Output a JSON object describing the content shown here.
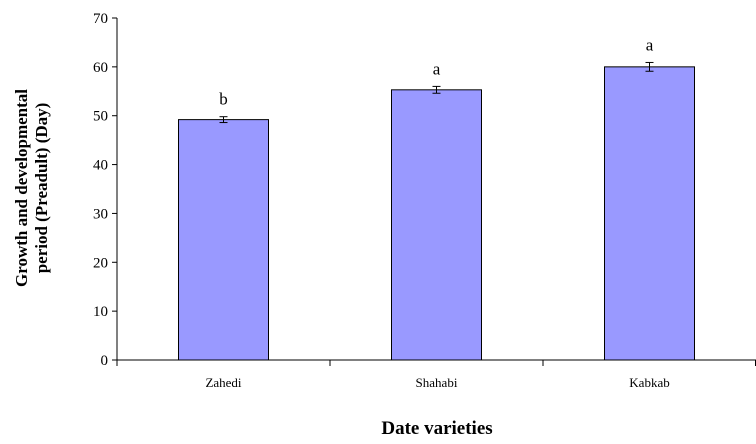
{
  "chart_data": {
    "type": "bar",
    "categories": [
      "Zahedi",
      "Shahabi",
      "Kabkab"
    ],
    "values": [
      49.2,
      55.3,
      60.0
    ],
    "errors": [
      0.6,
      0.7,
      0.9
    ],
    "significance_letters": [
      "b",
      "a",
      "a"
    ],
    "xlabel": "Date varieties",
    "ylabel_lines": [
      "Growth  and developmental",
      "period (Preadult) (Day)"
    ],
    "ylim": [
      0,
      70
    ],
    "yticks": [
      0,
      10,
      20,
      30,
      40,
      50,
      60,
      70
    ],
    "bar_color": "#9999ff",
    "grid": false
  }
}
